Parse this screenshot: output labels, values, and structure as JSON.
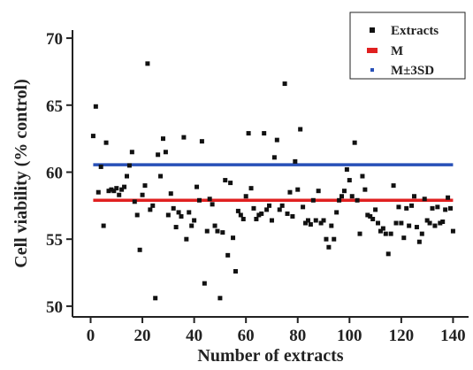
{
  "chart_data": {
    "type": "scatter",
    "title": "",
    "xlabel": "Number of extracts",
    "ylabel": "Cell viability (% control)",
    "xlim": [
      -7,
      146
    ],
    "ylim": [
      49.2,
      70.6
    ],
    "xticks": [
      0,
      20,
      40,
      60,
      80,
      100,
      120,
      140
    ],
    "yticks": [
      50,
      55,
      60,
      65,
      70
    ],
    "grid": false,
    "legend_position": "top-right",
    "series": [
      {
        "name": "Extracts",
        "kind": "scatter",
        "color": "#111111",
        "points": [
          [
            1,
            62.7
          ],
          [
            2,
            64.9
          ],
          [
            3,
            58.5
          ],
          [
            4,
            60.4
          ],
          [
            5,
            56.0
          ],
          [
            6,
            62.2
          ],
          [
            7,
            58.6
          ],
          [
            8,
            58.7
          ],
          [
            9,
            58.6
          ],
          [
            10,
            58.8
          ],
          [
            11,
            58.3
          ],
          [
            12,
            58.7
          ],
          [
            13,
            58.9
          ],
          [
            14,
            59.7
          ],
          [
            15,
            60.5
          ],
          [
            16,
            61.5
          ],
          [
            17,
            57.8
          ],
          [
            18,
            56.8
          ],
          [
            19,
            54.2
          ],
          [
            20,
            58.3
          ],
          [
            21,
            59.0
          ],
          [
            22,
            68.1
          ],
          [
            23,
            57.2
          ],
          [
            24,
            57.5
          ],
          [
            25,
            50.6
          ],
          [
            26,
            61.3
          ],
          [
            27,
            59.7
          ],
          [
            28,
            62.5
          ],
          [
            29,
            61.5
          ],
          [
            30,
            56.8
          ],
          [
            31,
            58.4
          ],
          [
            32,
            57.3
          ],
          [
            33,
            55.9
          ],
          [
            34,
            57.0
          ],
          [
            35,
            56.7
          ],
          [
            36,
            62.6
          ],
          [
            37,
            55.0
          ],
          [
            38,
            57.0
          ],
          [
            39,
            56.0
          ],
          [
            40,
            56.4
          ],
          [
            41,
            58.9
          ],
          [
            42,
            57.9
          ],
          [
            43,
            62.3
          ],
          [
            44,
            51.7
          ],
          [
            45,
            55.6
          ],
          [
            46,
            58.0
          ],
          [
            47,
            57.6
          ],
          [
            48,
            56.0
          ],
          [
            49,
            55.6
          ],
          [
            50,
            50.6
          ],
          [
            51,
            55.5
          ],
          [
            52,
            59.4
          ],
          [
            53,
            53.8
          ],
          [
            54,
            59.2
          ],
          [
            55,
            55.1
          ],
          [
            56,
            52.6
          ],
          [
            57,
            57.1
          ],
          [
            58,
            56.8
          ],
          [
            59,
            56.5
          ],
          [
            60,
            58.2
          ],
          [
            61,
            62.9
          ],
          [
            62,
            58.8
          ],
          [
            63,
            57.3
          ],
          [
            64,
            56.5
          ],
          [
            65,
            56.8
          ],
          [
            66,
            56.9
          ],
          [
            67,
            62.9
          ],
          [
            68,
            57.2
          ],
          [
            69,
            57.5
          ],
          [
            70,
            56.4
          ],
          [
            71,
            61.1
          ],
          [
            72,
            62.4
          ],
          [
            73,
            57.2
          ],
          [
            74,
            57.5
          ],
          [
            75,
            66.6
          ],
          [
            76,
            56.9
          ],
          [
            77,
            58.5
          ],
          [
            78,
            56.7
          ],
          [
            79,
            60.8
          ],
          [
            80,
            58.7
          ],
          [
            81,
            63.2
          ],
          [
            82,
            57.4
          ],
          [
            83,
            56.2
          ],
          [
            84,
            56.4
          ],
          [
            85,
            56.1
          ],
          [
            86,
            57.9
          ],
          [
            87,
            56.4
          ],
          [
            88,
            58.6
          ],
          [
            89,
            56.2
          ],
          [
            90,
            56.4
          ],
          [
            91,
            55.0
          ],
          [
            92,
            54.4
          ],
          [
            93,
            56.0
          ],
          [
            94,
            55.0
          ],
          [
            95,
            57.0
          ],
          [
            96,
            57.9
          ],
          [
            97,
            58.2
          ],
          [
            98,
            58.6
          ],
          [
            99,
            60.2
          ],
          [
            100,
            59.4
          ],
          [
            101,
            58.2
          ],
          [
            102,
            62.2
          ],
          [
            103,
            57.9
          ],
          [
            104,
            55.4
          ],
          [
            105,
            59.7
          ],
          [
            106,
            58.7
          ],
          [
            107,
            56.8
          ],
          [
            108,
            56.7
          ],
          [
            109,
            56.5
          ],
          [
            110,
            57.2
          ],
          [
            111,
            56.2
          ],
          [
            112,
            55.6
          ],
          [
            113,
            55.8
          ],
          [
            114,
            55.4
          ],
          [
            115,
            53.9
          ],
          [
            116,
            55.4
          ],
          [
            117,
            59.0
          ],
          [
            118,
            56.2
          ],
          [
            119,
            57.4
          ],
          [
            120,
            56.2
          ],
          [
            121,
            55.1
          ],
          [
            122,
            57.3
          ],
          [
            123,
            56.0
          ],
          [
            124,
            57.5
          ],
          [
            125,
            58.2
          ],
          [
            126,
            55.9
          ],
          [
            127,
            54.8
          ],
          [
            128,
            55.4
          ],
          [
            129,
            58.0
          ],
          [
            130,
            56.4
          ],
          [
            131,
            56.2
          ],
          [
            132,
            57.3
          ],
          [
            133,
            56.0
          ],
          [
            134,
            57.4
          ],
          [
            135,
            56.2
          ],
          [
            136,
            56.3
          ],
          [
            137,
            57.2
          ],
          [
            138,
            58.1
          ],
          [
            139,
            57.3
          ],
          [
            140,
            55.6
          ]
        ]
      },
      {
        "name": "M",
        "kind": "hline",
        "color": "#e02020",
        "y": 57.9,
        "xrange": [
          1,
          140
        ]
      },
      {
        "name": "M±3SD",
        "kind": "hline",
        "color": "#2850b8",
        "y": 60.55,
        "xrange": [
          1,
          140
        ]
      }
    ]
  }
}
